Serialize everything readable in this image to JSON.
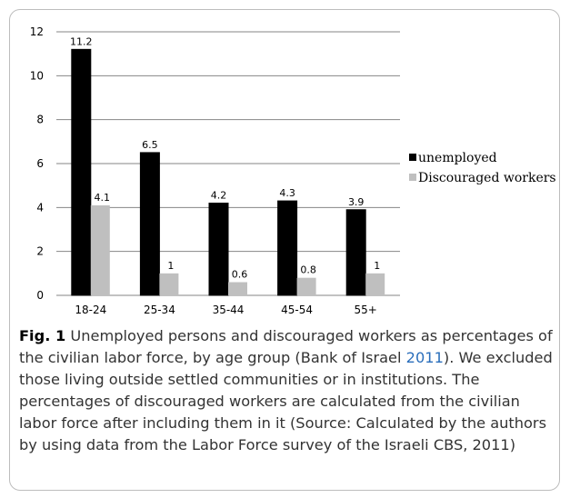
{
  "chart_data": {
    "type": "bar",
    "categories": [
      "18-24",
      "25-34",
      "35-44",
      "45-54",
      "55+"
    ],
    "series": [
      {
        "name": "unemployed",
        "values": [
          11.2,
          6.5,
          4.2,
          4.3,
          3.9
        ],
        "color": "#000000"
      },
      {
        "name": "Discouraged workers",
        "values": [
          4.1,
          1,
          0.6,
          0.8,
          1
        ],
        "color": "#bfbfbf"
      }
    ],
    "data_labels": [
      [
        "11.2",
        "6.5",
        "4.2",
        "4.3",
        "3.9"
      ],
      [
        "4.1",
        "1",
        "0.6",
        "0.8",
        "1"
      ]
    ],
    "ylim": [
      0,
      12
    ],
    "yticks": [
      0,
      2,
      4,
      6,
      8,
      10,
      12
    ],
    "grid": true,
    "legend_position": "right",
    "xlabel": "",
    "ylabel": "",
    "title": ""
  },
  "caption": {
    "label": "Fig. 1",
    "text_before_link": "Unemployed persons and discouraged workers as percentages of the civilian labor force, by age group (Bank of Israel ",
    "link_text": "2011",
    "text_after_link": "). We excluded those living outside settled communities or in institutions. The percentages of discouraged workers are calculated from the civilian labor force after including them in it (Source: Calculated by the authors by using data from the Labor Force survey of the Israeli CBS, 2011)"
  },
  "colors": {
    "grid": "#868686",
    "caption_text": "#333333",
    "link": "#2a6ebb",
    "frame_border": "#bdbdbd"
  }
}
